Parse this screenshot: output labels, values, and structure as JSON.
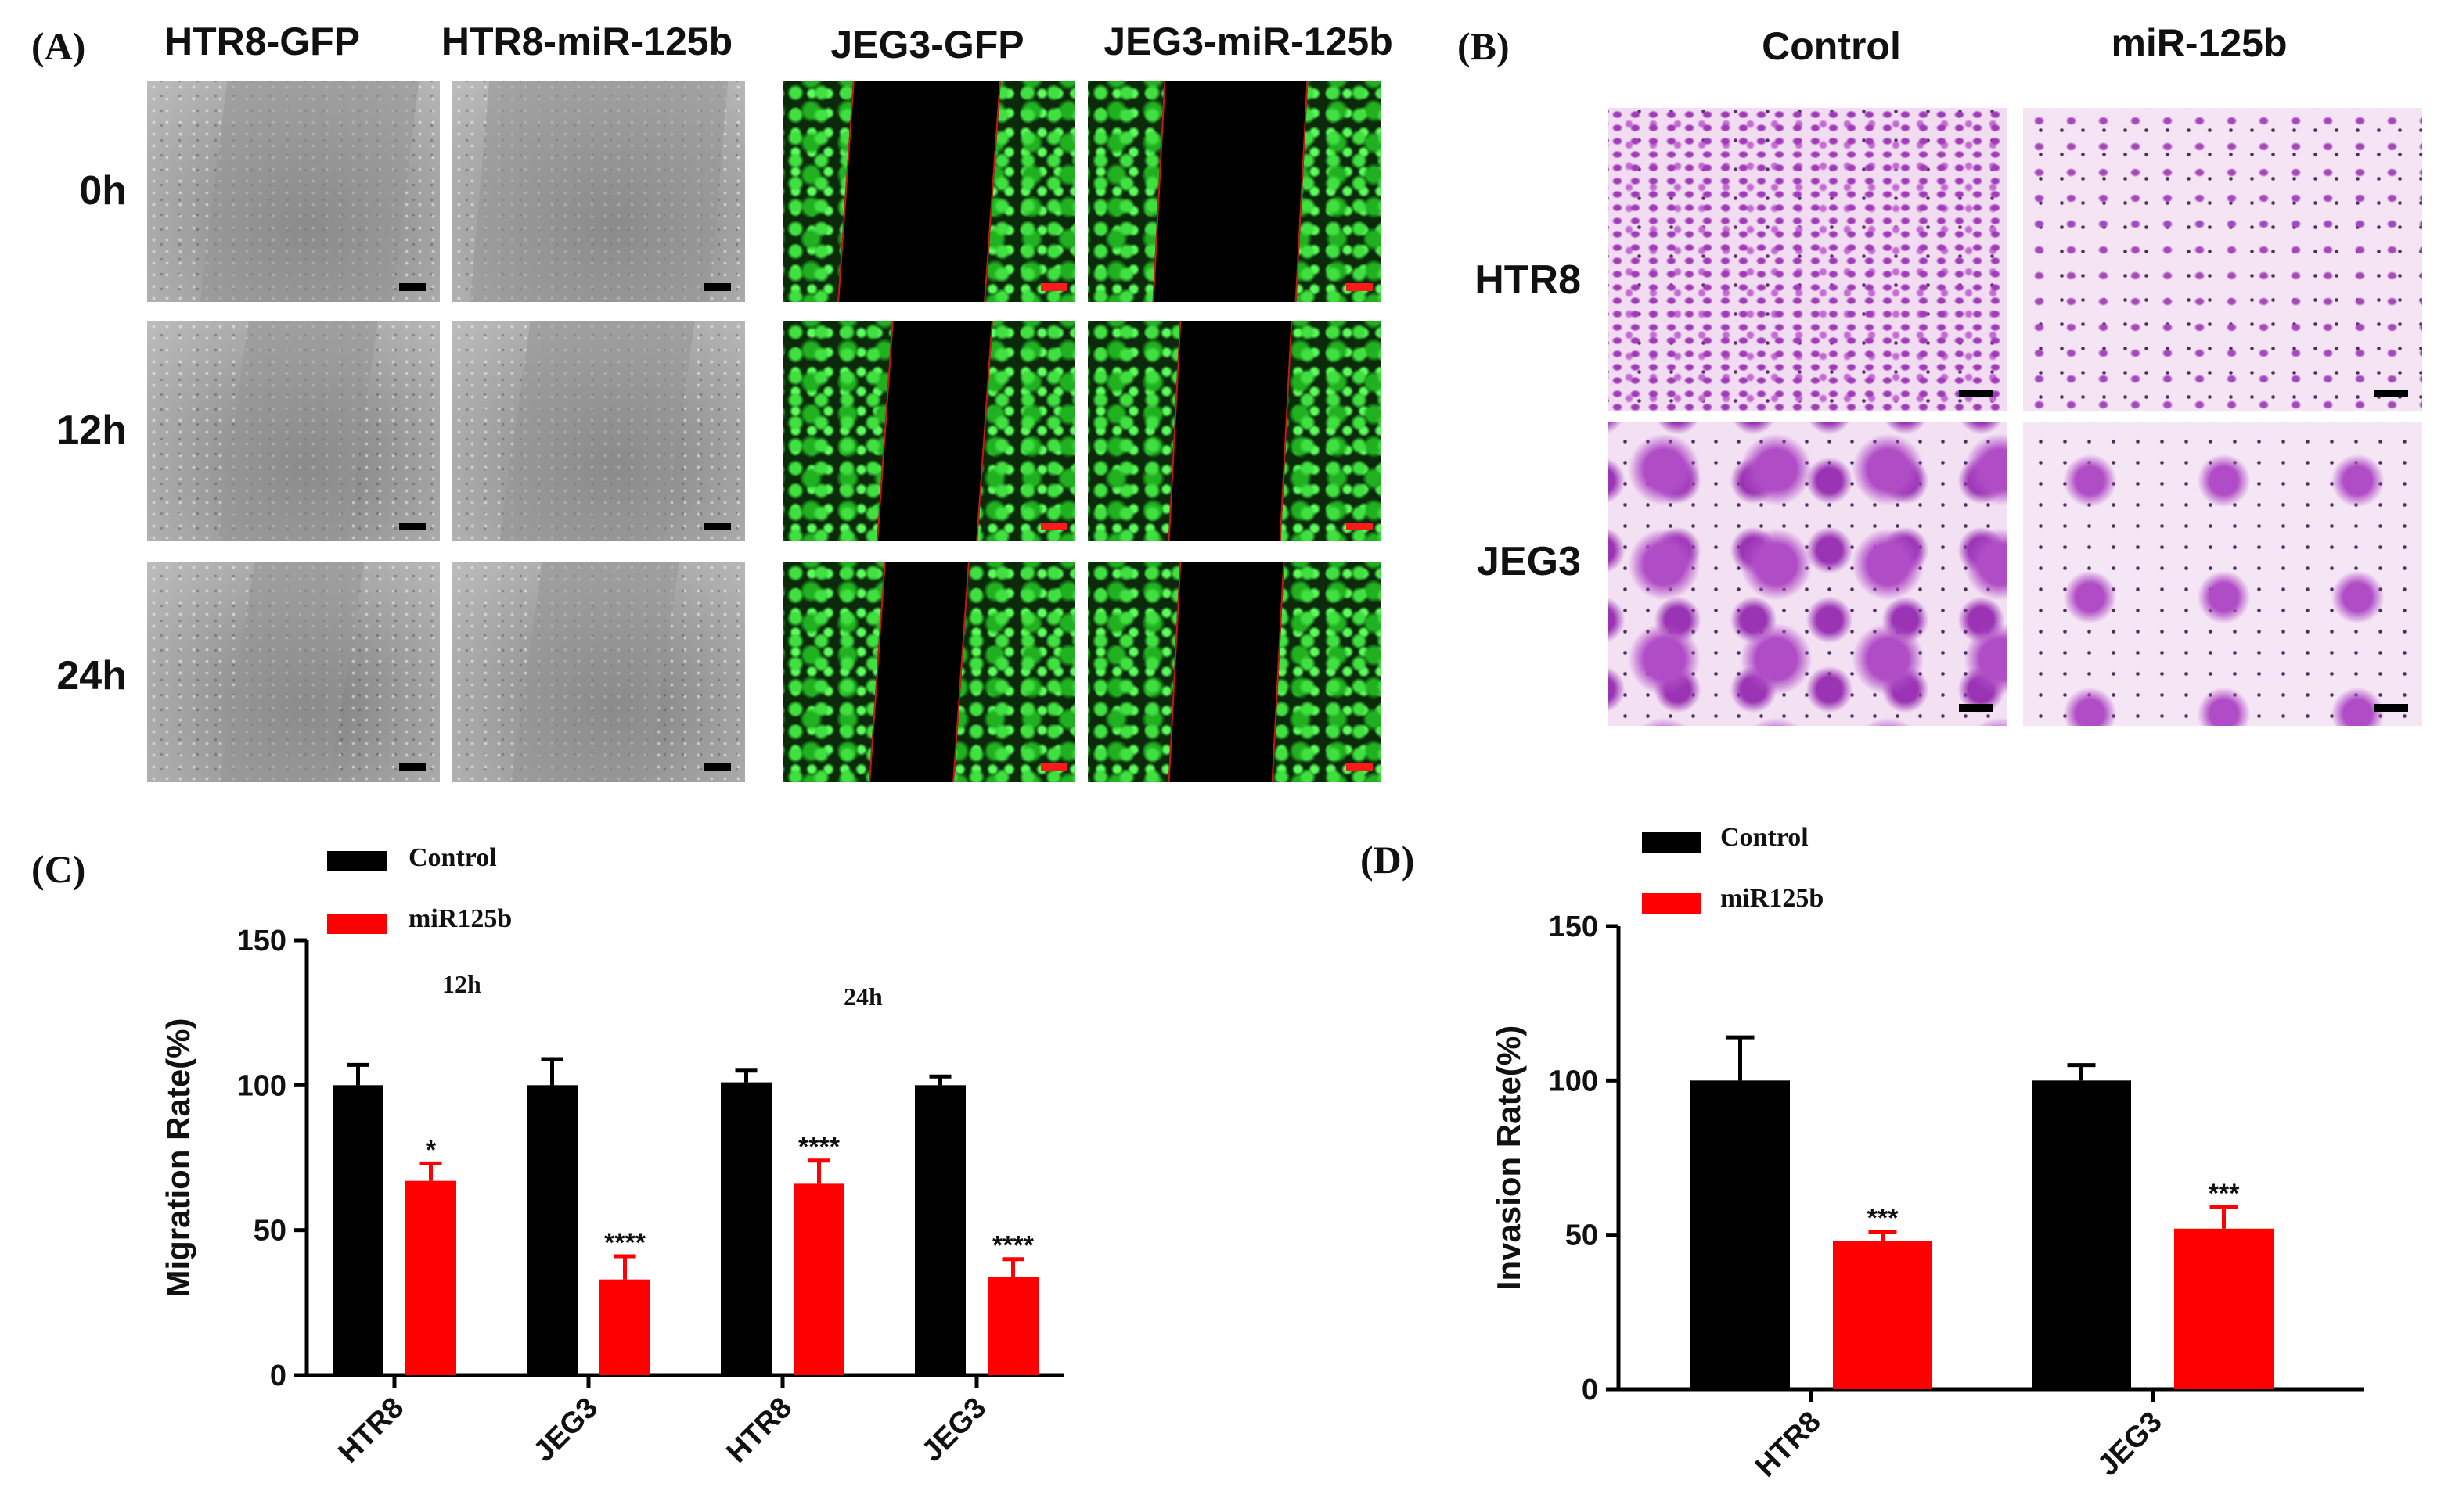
{
  "panels": {
    "a": {
      "label": "(A)",
      "columns": [
        "HTR8-GFP",
        "HTR8-miR-125b",
        "JEG3-GFP",
        "JEG3-miR-125b"
      ],
      "rows": [
        "0h",
        "12h",
        "24h"
      ]
    },
    "b": {
      "label": "(B)",
      "columns": [
        "Control",
        "miR-125b"
      ],
      "rows": [
        "HTR8",
        "JEG3"
      ]
    },
    "c": {
      "label": "(C)"
    },
    "d": {
      "label": "(D)"
    }
  },
  "colors": {
    "control": "#000000",
    "mir125b": "#ff0000",
    "scalebar_dark": "#000000",
    "scalebar_red": "#ff1a1a"
  },
  "chart_data": [
    {
      "id": "C",
      "type": "bar",
      "ylabel": "Migration Rate(%)",
      "ylim": [
        0,
        150
      ],
      "yticks": [
        0,
        50,
        100,
        150
      ],
      "categories": [
        "HTR8",
        "JEG3",
        "HTR8",
        "JEG3"
      ],
      "group_labels": [
        {
          "text": "12h",
          "over": [
            0,
            1
          ]
        },
        {
          "text": "24h",
          "over": [
            2,
            3
          ]
        }
      ],
      "legend": {
        "position": "top-left"
      },
      "series": [
        {
          "name": "Control",
          "color": "#000000",
          "values": [
            100,
            100,
            101,
            100
          ],
          "errors": [
            7,
            9,
            4,
            3
          ]
        },
        {
          "name": "miR125b",
          "color": "#ff0000",
          "values": [
            67,
            33,
            66,
            34
          ],
          "errors": [
            6,
            8,
            8,
            6
          ],
          "significance": [
            "*",
            "****",
            "****",
            "****"
          ]
        }
      ]
    },
    {
      "id": "D",
      "type": "bar",
      "ylabel": "Invasion Rate(%)",
      "ylim": [
        0,
        150
      ],
      "yticks": [
        0,
        50,
        100,
        150
      ],
      "categories": [
        "HTR8",
        "JEG3"
      ],
      "legend": {
        "position": "top-left"
      },
      "series": [
        {
          "name": "Control",
          "color": "#000000",
          "values": [
            100,
            100
          ],
          "errors": [
            14,
            5
          ]
        },
        {
          "name": "miR125b",
          "color": "#ff0000",
          "values": [
            48,
            52
          ],
          "errors": [
            3,
            7
          ],
          "significance": [
            "***",
            "***"
          ]
        }
      ]
    }
  ]
}
